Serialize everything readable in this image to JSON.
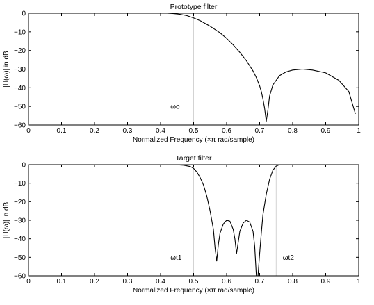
{
  "chart_data": [
    {
      "type": "line",
      "title": "Prototype filter",
      "xlabel": "Normalized Frequency  (×π rad/sample)",
      "ylabel": "|H(ω)| in dB",
      "xlim": [
        0,
        1
      ],
      "ylim": [
        -60,
        0
      ],
      "xticks": [
        "0",
        "0.1",
        "0.2",
        "0.3",
        "0.4",
        "0.5",
        "0.6",
        "0.7",
        "0.8",
        "0.9",
        "1"
      ],
      "yticks": [
        "0",
        "−10",
        "−20",
        "−30",
        "−40",
        "−50",
        "−60"
      ],
      "grid": false,
      "vlines": [
        0.5
      ],
      "annotations": [
        {
          "text": "ωo",
          "x": 0.43,
          "y": -50
        }
      ],
      "series": [
        {
          "x": [
            0.4,
            0.42,
            0.44,
            0.46,
            0.48,
            0.5,
            0.52,
            0.55,
            0.58,
            0.6,
            0.62,
            0.64,
            0.66,
            0.68,
            0.69,
            0.7,
            0.705,
            0.71,
            0.715,
            0.72,
            0.725,
            0.73,
            0.74,
            0.76,
            0.78,
            0.8,
            0.83,
            0.86,
            0.9,
            0.94,
            0.97,
            0.99
          ],
          "y": [
            0,
            0,
            -0.2,
            -0.6,
            -1.3,
            -2.5,
            -4,
            -7,
            -10.5,
            -13.5,
            -17,
            -21,
            -25.5,
            -31,
            -34.5,
            -39,
            -42,
            -46,
            -51,
            -58,
            -52,
            -44.5,
            -38.5,
            -33.5,
            -31.5,
            -30.5,
            -30,
            -30.5,
            -32,
            -36,
            -42,
            -54
          ]
        }
      ]
    },
    {
      "type": "line",
      "title": "Target filter",
      "xlabel": "Normalized Frequency  (×π rad/sample)",
      "ylabel": "|H(ω)| in dB",
      "xlim": [
        0,
        1
      ],
      "ylim": [
        -60,
        0
      ],
      "xticks": [
        "0",
        "0.1",
        "0.2",
        "0.3",
        "0.4",
        "0.5",
        "0.6",
        "0.7",
        "0.8",
        "0.9",
        "1"
      ],
      "yticks": [
        "0",
        "−10",
        "−20",
        "−30",
        "−40",
        "−50",
        "−60"
      ],
      "grid": false,
      "vlines": [
        0.5,
        0.75
      ],
      "annotations": [
        {
          "text": "ωt1",
          "x": 0.43,
          "y": -50
        },
        {
          "text": "ωt2",
          "x": 0.77,
          "y": -50
        }
      ],
      "series": [
        {
          "x": [
            0.44,
            0.47,
            0.49,
            0.5,
            0.51,
            0.52,
            0.53,
            0.54,
            0.55,
            0.56,
            0.565,
            0.57,
            0.575,
            0.58,
            0.59,
            0.6,
            0.61,
            0.62,
            0.625,
            0.63,
            0.635,
            0.64,
            0.65,
            0.66,
            0.67,
            0.68,
            0.685,
            0.69,
            0.695,
            0.7,
            0.705,
            0.71,
            0.72,
            0.73,
            0.74,
            0.75,
            0.76,
            0.78,
            0.8
          ],
          "y": [
            0,
            -0.3,
            -1,
            -2,
            -4,
            -7,
            -11,
            -17,
            -25,
            -35,
            -45,
            -52,
            -43,
            -37,
            -32,
            -30,
            -30.5,
            -35,
            -40,
            -48,
            -42,
            -36,
            -31.5,
            -30,
            -31,
            -36,
            -44,
            -60,
            -60,
            -48,
            -37,
            -27,
            -16,
            -8,
            -3,
            -0.8,
            0,
            0,
            0
          ]
        }
      ]
    }
  ]
}
